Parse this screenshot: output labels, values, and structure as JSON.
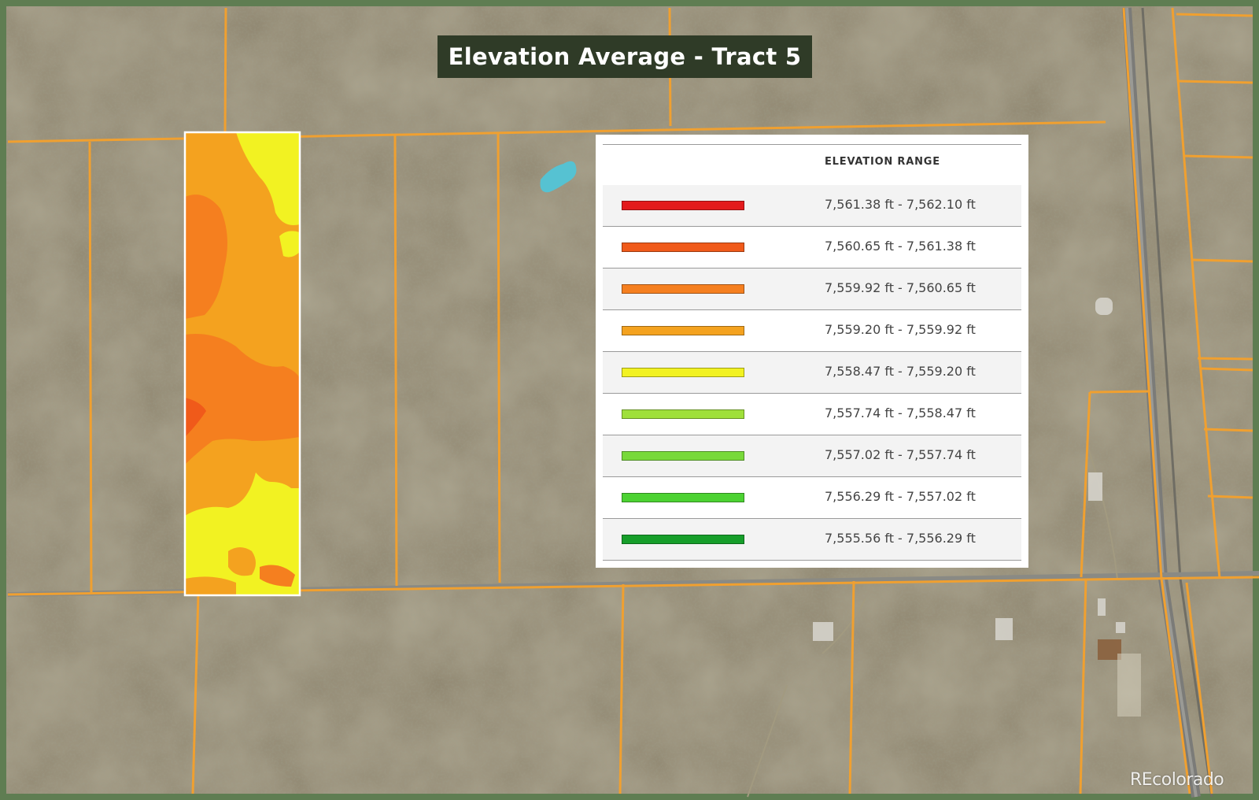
{
  "title": "Elevation Average - Tract 5",
  "legend": {
    "header": "ELEVATION RANGE",
    "items": [
      {
        "label": "7,561.38 ft - 7,562.10 ft",
        "color": "#e31a1c"
      },
      {
        "label": "7,560.65 ft - 7,561.38 ft",
        "color": "#f05a1a"
      },
      {
        "label": "7,559.92 ft - 7,560.65 ft",
        "color": "#f57f1f"
      },
      {
        "label": "7,559.20 ft - 7,559.92 ft",
        "color": "#f4a21f"
      },
      {
        "label": "7,558.47 ft - 7,559.20 ft",
        "color": "#f2f222"
      },
      {
        "label": "7,557.74 ft - 7,558.47 ft",
        "color": "#9fe03a"
      },
      {
        "label": "7,557.02 ft - 7,557.74 ft",
        "color": "#78d93a"
      },
      {
        "label": "7,556.29 ft - 7,557.02 ft",
        "color": "#4cd232"
      },
      {
        "label": "7,555.56 ft - 7,556.29 ft",
        "color": "#169e2a"
      }
    ]
  },
  "watermark": "REcolorado",
  "colors": {
    "parcel_lines": "#f0a030",
    "frame": "#5f7d52",
    "tract_outline": "#ffffff",
    "water": "#56c2d2"
  }
}
